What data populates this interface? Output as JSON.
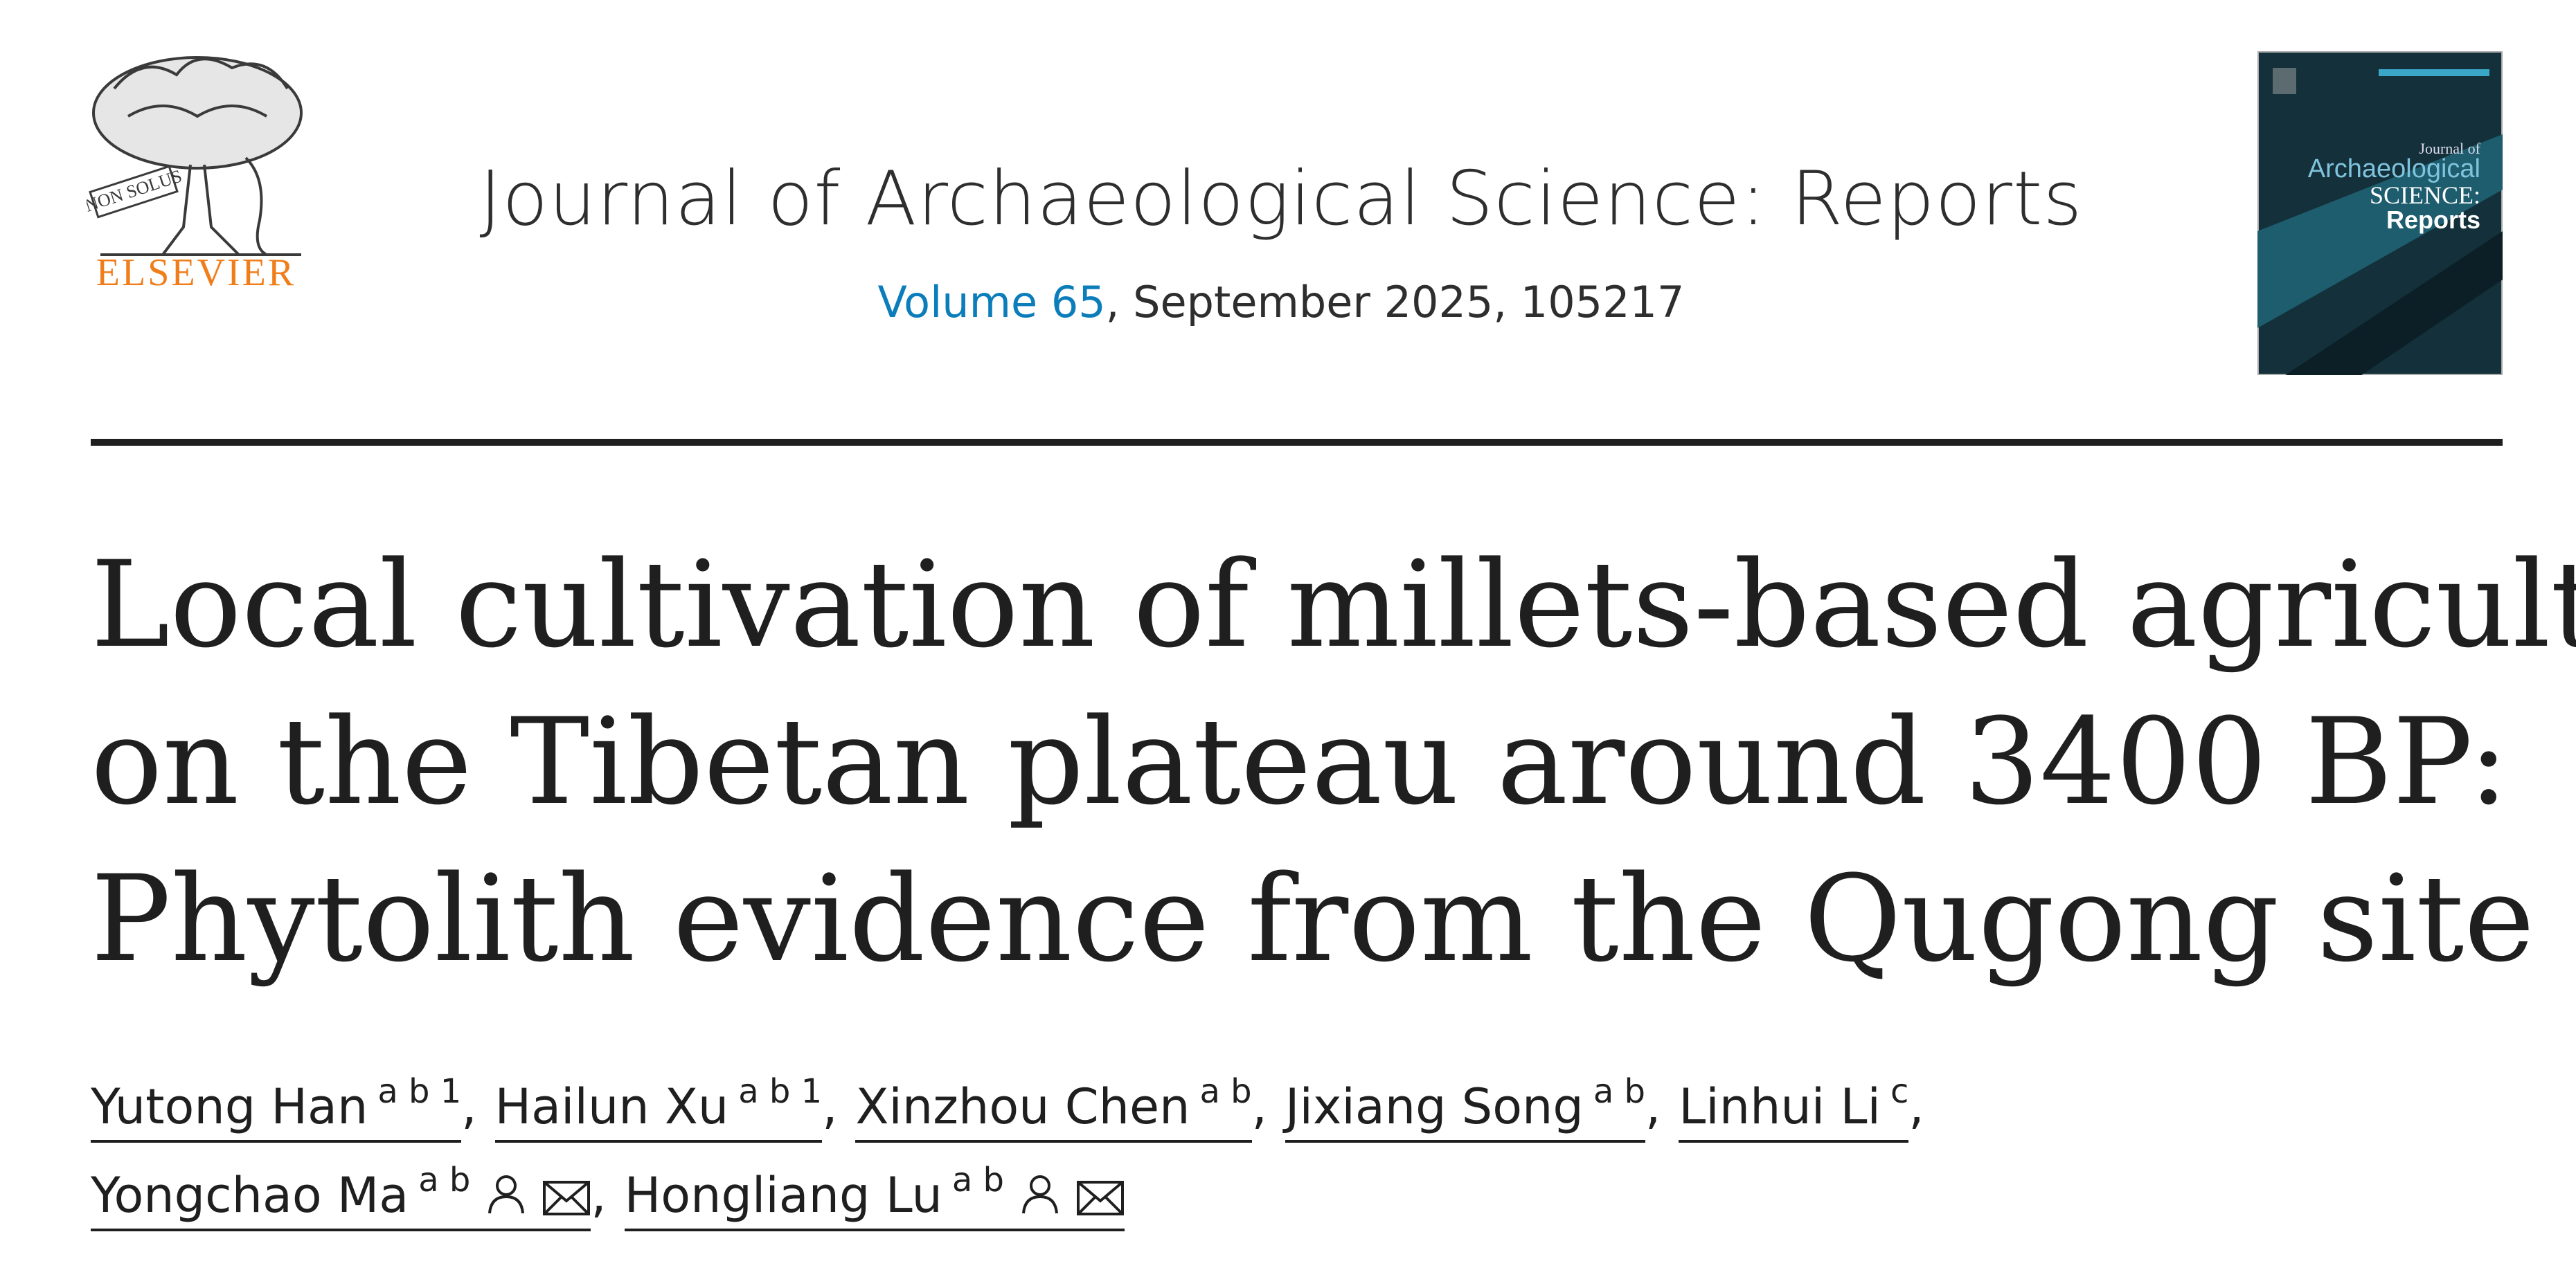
{
  "header": {
    "publisher": "ELSEVIER",
    "logo_motto": "NON SOLUS",
    "journal": "Journal of Archaeological Science: Reports",
    "volume_link": "Volume 65",
    "issue_info": ", September 2025, 105217",
    "cover": {
      "line1": "Journal of",
      "line2": "Archaeological",
      "line3": "SCIENCE:",
      "line4": "Reports"
    }
  },
  "article": {
    "title_lines": [
      "Local cultivation of millets-based agriculture",
      "on the Tibetan plateau around 3400 BP:",
      "Phytolith evidence from the Qugong site"
    ],
    "authors": [
      {
        "name": "Yutong Han",
        "affil": "a b 1",
        "sep": ",",
        "corresponding": false
      },
      {
        "name": "Hailun Xu",
        "affil": "a b 1",
        "sep": ",",
        "corresponding": false
      },
      {
        "name": "Xinzhou Chen",
        "affil": "a b",
        "sep": ",",
        "corresponding": false
      },
      {
        "name": "Jixiang Song",
        "affil": "a b",
        "sep": ",",
        "corresponding": false
      },
      {
        "name": "Linhui Li",
        "affil": "c",
        "sep": ",",
        "corresponding": false
      },
      {
        "name": "Yongchao Ma",
        "affil": "a b",
        "sep": ",",
        "corresponding": true
      },
      {
        "name": "Hongliang Lu",
        "affil": "a b",
        "sep": null,
        "corresponding": true
      }
    ]
  }
}
